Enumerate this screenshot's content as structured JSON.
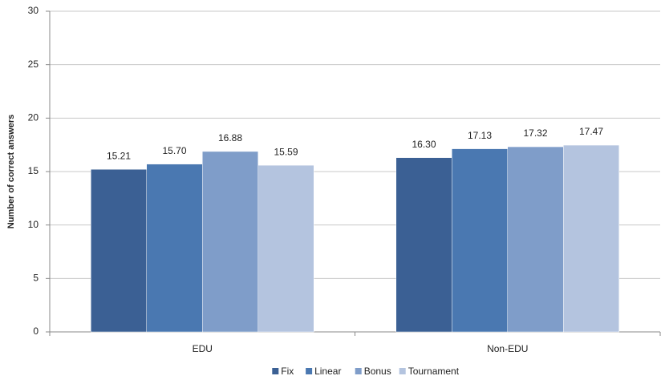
{
  "chart_data": {
    "type": "bar",
    "y_label": "Number of correct answers",
    "categories": [
      "EDU",
      "Non-EDU"
    ],
    "series": [
      {
        "name": "Fix",
        "color": "#3b6094",
        "values": [
          15.21,
          16.3
        ],
        "value_labels": [
          "15.21",
          "16.30"
        ]
      },
      {
        "name": "Linear",
        "color": "#4a78b1",
        "values": [
          15.7,
          17.13
        ],
        "value_labels": [
          "15.70",
          "17.13"
        ]
      },
      {
        "name": "Bonus",
        "color": "#7f9dc9",
        "values": [
          16.88,
          17.32
        ],
        "value_labels": [
          "16.88",
          "17.32"
        ]
      },
      {
        "name": "Tournament",
        "color": "#b4c4df",
        "values": [
          15.59,
          17.47
        ],
        "value_labels": [
          "15.59",
          "17.47"
        ]
      }
    ],
    "ylim": [
      0,
      30
    ],
    "yticks": [
      0,
      5,
      10,
      15,
      20,
      25,
      30
    ],
    "grid": true,
    "legend": "bottom"
  }
}
